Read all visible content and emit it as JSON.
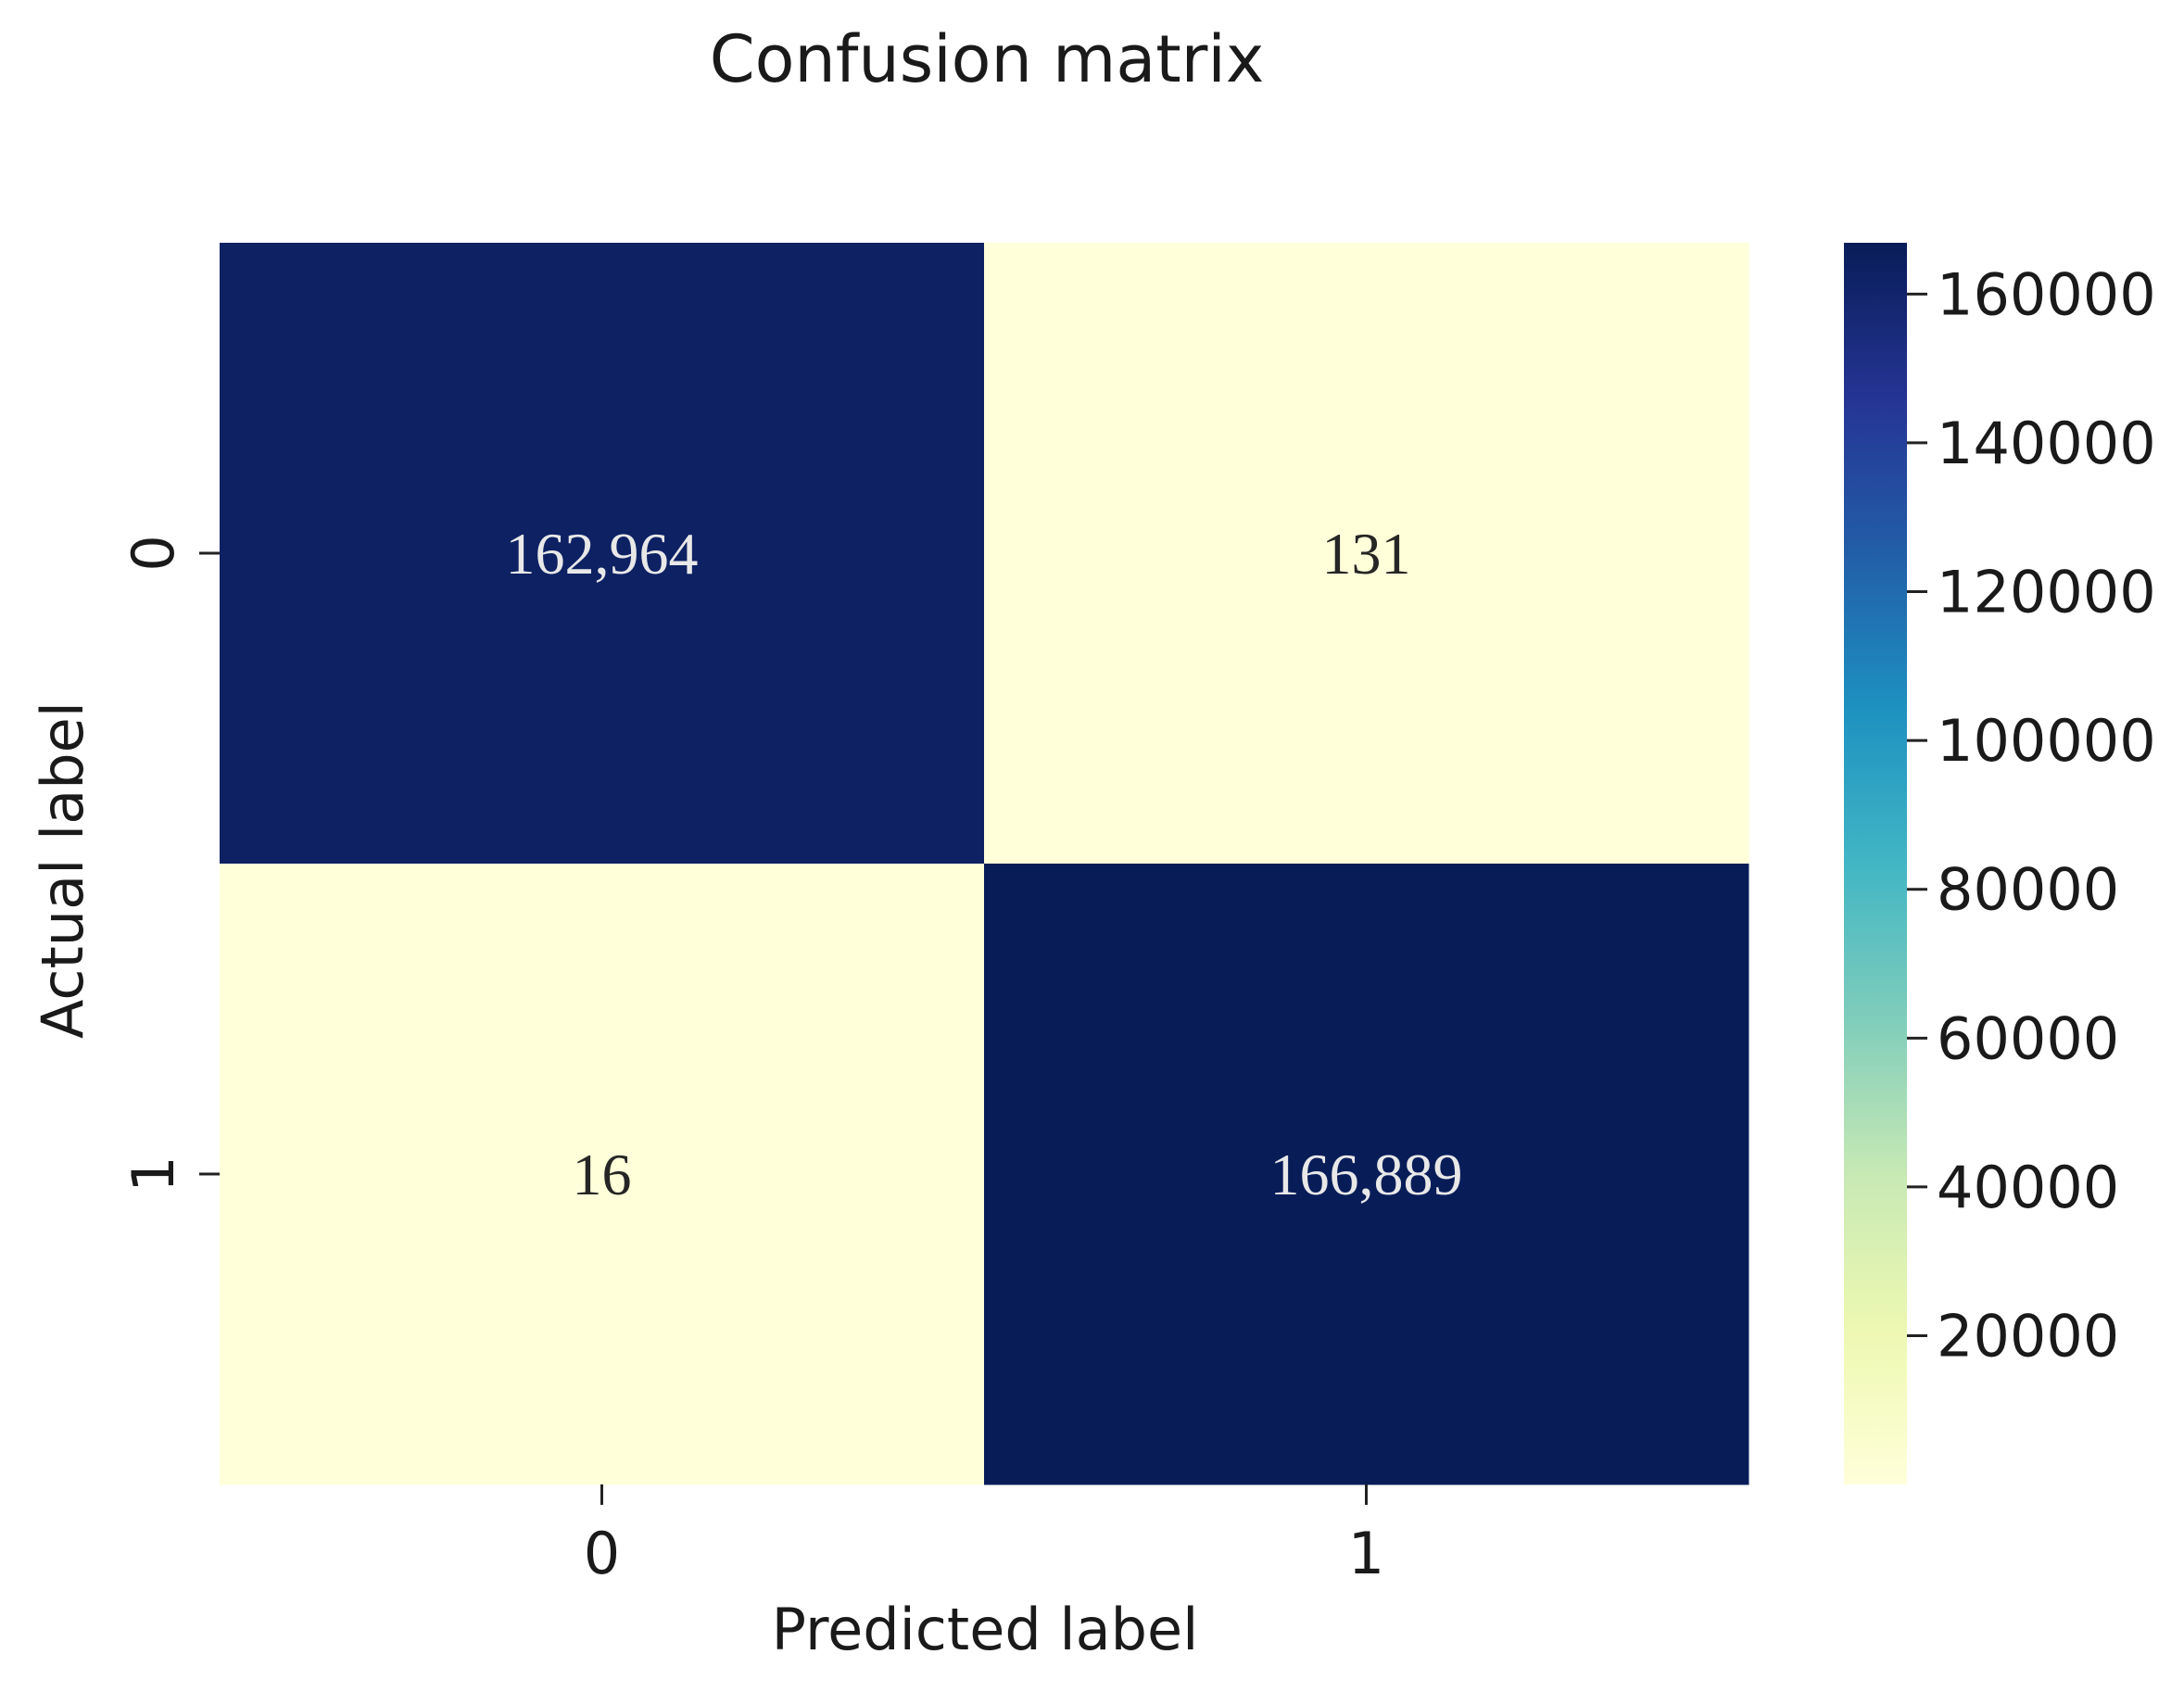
{
  "chart_data": {
    "type": "heatmap",
    "title": "Confusion matrix",
    "xlabel": "Predicted label",
    "ylabel": "Actual label",
    "x_tick_labels": [
      "0",
      "1"
    ],
    "y_tick_labels": [
      "0",
      "1"
    ],
    "values": [
      [
        162964,
        131
      ],
      [
        16,
        166889
      ]
    ],
    "cell_labels": [
      [
        "162,964",
        "131"
      ],
      [
        "16",
        "166,889"
      ]
    ],
    "colormap": "YlGnBu",
    "colormap_stops": [
      "#ffffd9",
      "#edf8b1",
      "#c7e9b4",
      "#7fcdbb",
      "#41b6c4",
      "#1d91c0",
      "#225ea8",
      "#253494",
      "#081d58"
    ],
    "colorbar": {
      "vmin": 16,
      "vmax": 166889,
      "tick_values": [
        20000,
        40000,
        60000,
        80000,
        100000,
        120000,
        140000,
        160000
      ],
      "tick_labels": [
        "20000",
        "40000",
        "60000",
        "80000",
        "100000",
        "120000",
        "140000",
        "160000"
      ]
    },
    "annotation_colors": {
      "on_dark": "#e8e8e8",
      "on_light": "#262626"
    }
  }
}
